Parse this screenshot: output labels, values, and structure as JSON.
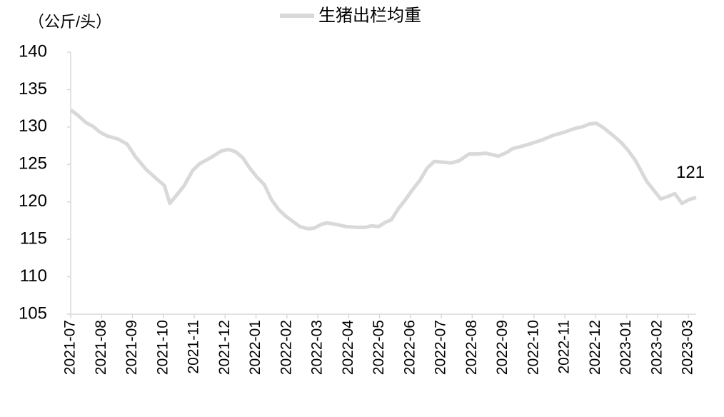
{
  "chart_data": {
    "type": "line",
    "y_label": "（公斤/头）",
    "annotation": "121",
    "x": [
      0,
      0.25,
      0.49,
      0.72,
      0.95,
      1.18,
      1.53,
      1.83,
      2.1,
      2.45,
      2.8,
      3.03,
      3.21,
      3.45,
      3.68,
      3.95,
      4.18,
      4.53,
      4.88,
      5.11,
      5.34,
      5.57,
      5.8,
      6.03,
      6.27,
      6.5,
      6.73,
      6.96,
      7.19,
      7.42,
      7.7,
      7.88,
      8.12,
      8.3,
      8.58,
      8.92,
      9.27,
      9.55,
      9.73,
      9.97,
      10.2,
      10.38,
      10.61,
      10.84,
      11.08,
      11.31,
      11.54,
      11.77,
      12.05,
      12.32,
      12.58,
      12.9,
      13.2,
      13.43,
      13.66,
      13.84,
      14.12,
      14.3,
      14.58,
      14.92,
      15.28,
      15.63,
      15.98,
      16.32,
      16.55,
      16.79,
      17.02,
      17.25,
      17.55,
      17.83,
      18.06,
      18.29,
      18.47,
      18.64,
      18.87,
      19.1,
      19.33,
      19.56,
      19.79,
      20.02,
      20.25
    ],
    "series": [
      {
        "name": "生猪出栏均重",
        "color": "#d9d9d9",
        "values": [
          132.3,
          131.5,
          130.6,
          130.1,
          129.3,
          128.8,
          128.4,
          127.7,
          126.0,
          124.3,
          123.0,
          122.2,
          119.8,
          121.0,
          122.2,
          124.2,
          125.1,
          125.9,
          126.8,
          127.0,
          126.7,
          125.9,
          124.5,
          123.3,
          122.3,
          120.3,
          119.0,
          118.1,
          117.4,
          116.7,
          116.4,
          116.5,
          117.0,
          117.2,
          117.0,
          116.7,
          116.6,
          116.6,
          116.8,
          116.7,
          117.3,
          117.6,
          119.1,
          120.3,
          121.7,
          122.9,
          124.5,
          125.4,
          125.3,
          125.2,
          125.5,
          126.4,
          126.4,
          126.5,
          126.3,
          126.1,
          126.6,
          127.1,
          127.4,
          127.8,
          128.3,
          128.9,
          129.3,
          129.8,
          130.0,
          130.4,
          130.5,
          129.9,
          128.9,
          127.9,
          126.8,
          125.5,
          124.1,
          122.8,
          121.6,
          120.4,
          120.7,
          121.1,
          119.8,
          120.3,
          120.6
        ]
      }
    ],
    "xlim": [
      0,
      20.25
    ],
    "xticks": [
      {
        "value": 0,
        "label": "2021-07"
      },
      {
        "value": 1,
        "label": "2021-08"
      },
      {
        "value": 2,
        "label": "2021-09"
      },
      {
        "value": 3,
        "label": "2021-10"
      },
      {
        "value": 4,
        "label": "2021-11"
      },
      {
        "value": 5,
        "label": "2021-12"
      },
      {
        "value": 6,
        "label": "2022-01"
      },
      {
        "value": 7,
        "label": "2022-02"
      },
      {
        "value": 8,
        "label": "2022-03"
      },
      {
        "value": 9,
        "label": "2022-04"
      },
      {
        "value": 10,
        "label": "2022-05"
      },
      {
        "value": 11,
        "label": "2022-06"
      },
      {
        "value": 12,
        "label": "2022-07"
      },
      {
        "value": 13,
        "label": "2022-08"
      },
      {
        "value": 14,
        "label": "2022-09"
      },
      {
        "value": 15,
        "label": "2022-10"
      },
      {
        "value": 16,
        "label": "2022-11"
      },
      {
        "value": 17,
        "label": "2022-12"
      },
      {
        "value": 18,
        "label": "2023-01"
      },
      {
        "value": 19,
        "label": "2023-02"
      },
      {
        "value": 20,
        "label": "2023-03"
      }
    ],
    "ylim": [
      105,
      140
    ],
    "yticks": [
      105,
      110,
      115,
      120,
      125,
      130,
      135,
      140
    ]
  }
}
